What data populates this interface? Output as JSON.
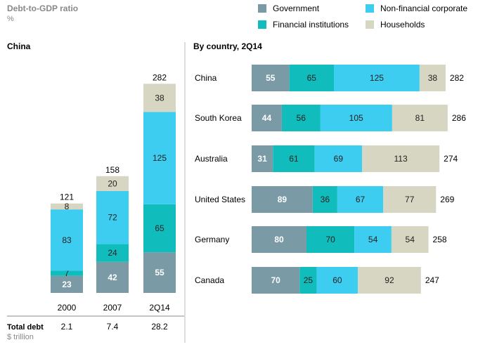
{
  "header": {
    "title": "Debt-to-GDP ratio",
    "unit": "%"
  },
  "legend": [
    {
      "label": "Government",
      "color": "#7a9aa6"
    },
    {
      "label": "Non-financial corporate",
      "color": "#3ccdf0"
    },
    {
      "label": "Financial institutions",
      "color": "#11bcbc"
    },
    {
      "label": "Households",
      "color": "#d6d6c2"
    }
  ],
  "footer": {
    "total_label": "Total debt",
    "total_unit": "$ trillion"
  },
  "chart_data": [
    {
      "type": "bar",
      "orientation": "vertical",
      "stacked": true,
      "title": "China",
      "categories": [
        "2000",
        "2007",
        "2Q14"
      ],
      "series": [
        {
          "name": "Government",
          "values": [
            23,
            42,
            55
          ]
        },
        {
          "name": "Financial institutions",
          "values": [
            7,
            24,
            65
          ]
        },
        {
          "name": "Non-financial corporate",
          "values": [
            83,
            72,
            125
          ]
        },
        {
          "name": "Households",
          "values": [
            8,
            20,
            38
          ]
        }
      ],
      "totals": [
        121,
        158,
        282
      ],
      "total_debt": [
        "2.1",
        "7.4",
        "28.2"
      ],
      "ylim": [
        0,
        300
      ]
    },
    {
      "type": "bar",
      "orientation": "horizontal",
      "stacked": true,
      "title": "By country, 2Q14",
      "categories": [
        "China",
        "South Korea",
        "Australia",
        "United States",
        "Germany",
        "Canada"
      ],
      "series": [
        {
          "name": "Government",
          "values": [
            55,
            44,
            31,
            89,
            80,
            70
          ]
        },
        {
          "name": "Financial institutions",
          "values": [
            65,
            56,
            61,
            36,
            70,
            25
          ]
        },
        {
          "name": "Non-financial corporate",
          "values": [
            125,
            105,
            69,
            67,
            54,
            60
          ]
        },
        {
          "name": "Households",
          "values": [
            38,
            81,
            113,
            77,
            54,
            92
          ]
        }
      ],
      "totals": [
        282,
        286,
        274,
        269,
        258,
        247
      ],
      "xlim": [
        0,
        300
      ]
    }
  ]
}
